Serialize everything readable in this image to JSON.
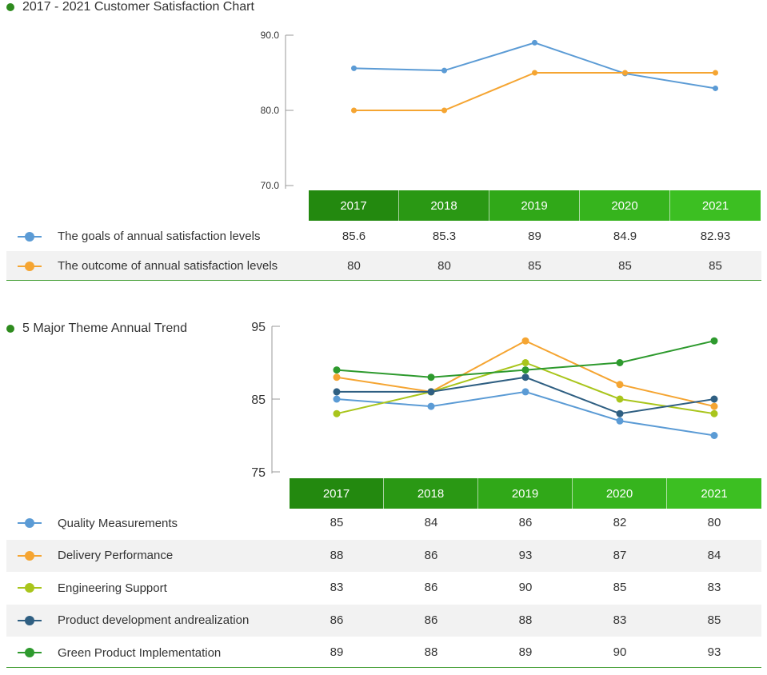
{
  "colors": {
    "green_dot": "#2e8b1e",
    "year_bar_left": "#23890f",
    "year_bar_right": "#3cbf22",
    "blue": "#5b9bd5",
    "orange": "#f5a532",
    "lime": "#a9c51c",
    "navy": "#2f5f82",
    "green": "#2e9a2e"
  },
  "chart_data": [
    {
      "type": "line",
      "title": "2017 - 2021 Customer Satisfaction Chart",
      "categories": [
        "2017",
        "2018",
        "2019",
        "2020",
        "2021"
      ],
      "y_ticks": [
        "90.0",
        "80.0",
        "70.0"
      ],
      "ylim": [
        70,
        90
      ],
      "series": [
        {
          "name": "The goals of annual satisfaction levels",
          "color": "#5b9bd5",
          "values": [
            85.6,
            85.3,
            89,
            84.9,
            82.93
          ],
          "labels": [
            "85.6",
            "85.3",
            "89",
            "84.9",
            "82.93"
          ]
        },
        {
          "name": "The outcome of annual satisfaction levels",
          "color": "#f5a532",
          "values": [
            80,
            80,
            85,
            85,
            85
          ],
          "labels": [
            "80",
            "80",
            "85",
            "85",
            "85"
          ]
        }
      ]
    },
    {
      "type": "line",
      "title": "5 Major Theme Annual Trend",
      "categories": [
        "2017",
        "2018",
        "2019",
        "2020",
        "2021"
      ],
      "y_ticks": [
        "95",
        "85",
        "75"
      ],
      "ylim": [
        75,
        95
      ],
      "series": [
        {
          "name": "Quality Measurements",
          "color": "#5b9bd5",
          "values": [
            85,
            84,
            86,
            82,
            80
          ],
          "labels": [
            "85",
            "84",
            "86",
            "82",
            "80"
          ]
        },
        {
          "name": "Delivery Performance",
          "color": "#f5a532",
          "values": [
            88,
            86,
            93,
            87,
            84
          ],
          "labels": [
            "88",
            "86",
            "93",
            "87",
            "84"
          ]
        },
        {
          "name": "Engineering Support",
          "color": "#a9c51c",
          "values": [
            83,
            86,
            90,
            85,
            83
          ],
          "labels": [
            "83",
            "86",
            "90",
            "85",
            "83"
          ]
        },
        {
          "name": "Product development andrealization",
          "color": "#2f5f82",
          "values": [
            86,
            86,
            88,
            83,
            85
          ],
          "labels": [
            "86",
            "86",
            "88",
            "83",
            "85"
          ]
        },
        {
          "name": "Green Product Implementation",
          "color": "#2e9a2e",
          "values": [
            89,
            88,
            89,
            90,
            93
          ],
          "labels": [
            "89",
            "88",
            "89",
            "90",
            "93"
          ]
        }
      ]
    }
  ]
}
